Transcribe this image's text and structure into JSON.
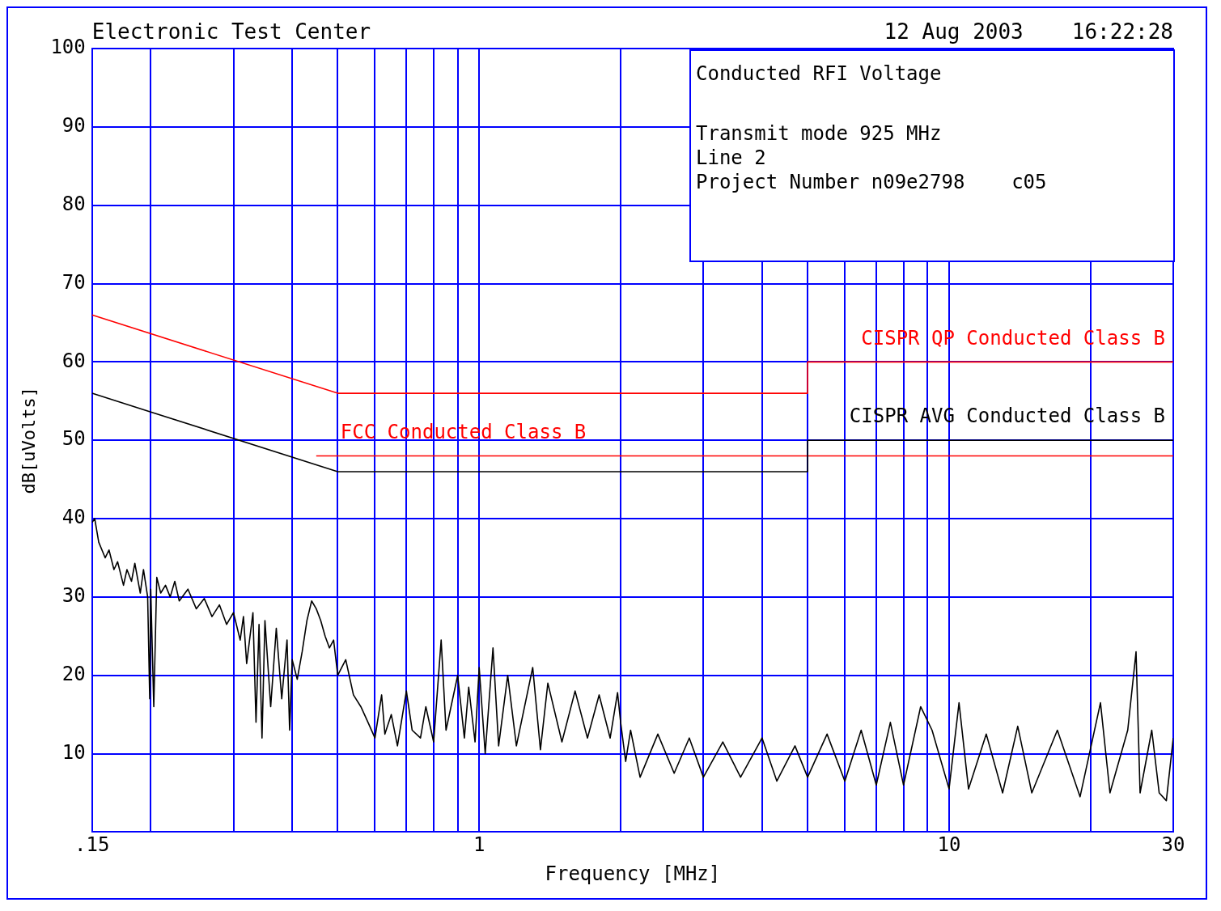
{
  "chart_data": {
    "type": "line",
    "title": "Electronic Test Center",
    "annotations": [
      "12 Aug 2003",
      "16:22:28",
      "Conducted RFI Voltage",
      "Transmit mode 925 MHz",
      "Line 2",
      "Project Number n09e2798    c05"
    ],
    "xlabel": "Frequency [MHz]",
    "ylabel": "dB[uVolts]",
    "log": "x",
    "grid": true,
    "legend": false,
    "marker": "none",
    "line_style": "solid",
    "xlim": [
      0.15,
      30
    ],
    "xticks": [
      {
        "value": 0.15,
        "label": ".15"
      },
      {
        "value": 0.2,
        "label": null
      },
      {
        "value": 0.3,
        "label": null
      },
      {
        "value": 0.4,
        "label": null
      },
      {
        "value": 0.5,
        "label": null
      },
      {
        "value": 0.6,
        "label": null
      },
      {
        "value": 0.7,
        "label": null
      },
      {
        "value": 0.8,
        "label": null
      },
      {
        "value": 0.9,
        "label": null
      },
      1,
      {
        "value": 2,
        "label": null
      },
      {
        "value": 3,
        "label": null
      },
      {
        "value": 4,
        "label": null
      },
      {
        "value": 5,
        "label": null
      },
      {
        "value": 6,
        "label": null
      },
      {
        "value": 7,
        "label": null
      },
      {
        "value": 8,
        "label": null
      },
      {
        "value": 9,
        "label": null
      },
      10,
      {
        "value": 20,
        "label": null
      },
      30
    ],
    "ylim": [
      0,
      100
    ],
    "yticks": [
      10,
      20,
      30,
      40,
      50,
      60,
      70,
      80,
      90,
      100
    ],
    "series": [
      {
        "name": "CISPR QP Conducted Class B",
        "color": "#ff0000",
        "x": [
          0.15,
          0.5,
          5,
          5,
          30
        ],
        "values": [
          66,
          56,
          56,
          60,
          60
        ]
      },
      {
        "name": "CISPR AVG Conducted Class B",
        "color": "#000000",
        "x": [
          0.15,
          0.5,
          5,
          5,
          30
        ],
        "values": [
          56,
          46,
          46,
          50,
          50
        ]
      },
      {
        "name": "FCC Conducted Class B",
        "color": "#ff0000",
        "x": [
          0.45,
          30
        ],
        "values": [
          48,
          48
        ]
      },
      {
        "color": "#000000",
        "x": [
          0.15,
          0.152,
          0.155,
          0.16,
          0.163,
          0.167,
          0.17,
          0.175,
          0.178,
          0.182,
          0.185,
          0.19,
          0.193,
          0.197,
          0.199,
          0.2,
          0.203,
          0.206,
          0.21,
          0.215,
          0.22,
          0.225,
          0.23,
          0.24,
          0.25,
          0.26,
          0.27,
          0.28,
          0.29,
          0.3,
          0.31,
          0.315,
          0.32,
          0.33,
          0.335,
          0.34,
          0.345,
          0.35,
          0.36,
          0.37,
          0.38,
          0.39,
          0.395,
          0.4,
          0.41,
          0.42,
          0.43,
          0.44,
          0.45,
          0.46,
          0.47,
          0.48,
          0.49,
          0.5,
          0.52,
          0.54,
          0.56,
          0.58,
          0.6,
          0.62,
          0.63,
          0.65,
          0.67,
          0.7,
          0.72,
          0.75,
          0.77,
          0.8,
          0.83,
          0.85,
          0.9,
          0.93,
          0.95,
          0.98,
          1.0,
          1.03,
          1.07,
          1.1,
          1.15,
          1.2,
          1.3,
          1.35,
          1.4,
          1.5,
          1.6,
          1.7,
          1.8,
          1.9,
          1.97,
          2.0,
          2.05,
          2.1,
          2.2,
          2.4,
          2.6,
          2.8,
          3.0,
          3.3,
          3.6,
          4.0,
          4.3,
          4.7,
          5.0,
          5.5,
          6.0,
          6.5,
          7.0,
          7.5,
          8.0,
          8.7,
          9.2,
          10,
          10.5,
          11,
          12,
          13,
          14,
          15,
          17,
          19,
          21,
          22,
          24,
          25,
          25.5,
          27,
          28,
          29,
          30
        ],
        "values": [
          39.5,
          40,
          37,
          35,
          36,
          33.5,
          34.5,
          31.5,
          33.5,
          32,
          34.3,
          30.5,
          33.5,
          30,
          17,
          31,
          16,
          32.5,
          30.5,
          31.5,
          30,
          32,
          29.5,
          31,
          28.5,
          29.8,
          27.5,
          29,
          26.5,
          28,
          24.5,
          27.5,
          21.5,
          28,
          14,
          26.5,
          12,
          27,
          16,
          26,
          17,
          24.5,
          13,
          22,
          19.5,
          23,
          27,
          29.5,
          28.5,
          27,
          25,
          23.5,
          24.5,
          20,
          22,
          17.5,
          16,
          14,
          12,
          17.5,
          12.5,
          15,
          11,
          18,
          13,
          12,
          16,
          11.5,
          24.5,
          13,
          20,
          12,
          18.5,
          11.5,
          21,
          10,
          23.5,
          11,
          20,
          11,
          21,
          10.5,
          19,
          11.5,
          18,
          12,
          17.5,
          12,
          17.8,
          14,
          9,
          13,
          7,
          12.5,
          7.5,
          12,
          7,
          11.5,
          7,
          12,
          6.5,
          11,
          7,
          12.5,
          6.5,
          13,
          6,
          14,
          6,
          16,
          13,
          5.5,
          16.5,
          5.5,
          12.5,
          5,
          13.5,
          5,
          13,
          4.5,
          16.5,
          5,
          13,
          23,
          5,
          13,
          5,
          4,
          12
        ]
      }
    ]
  }
}
